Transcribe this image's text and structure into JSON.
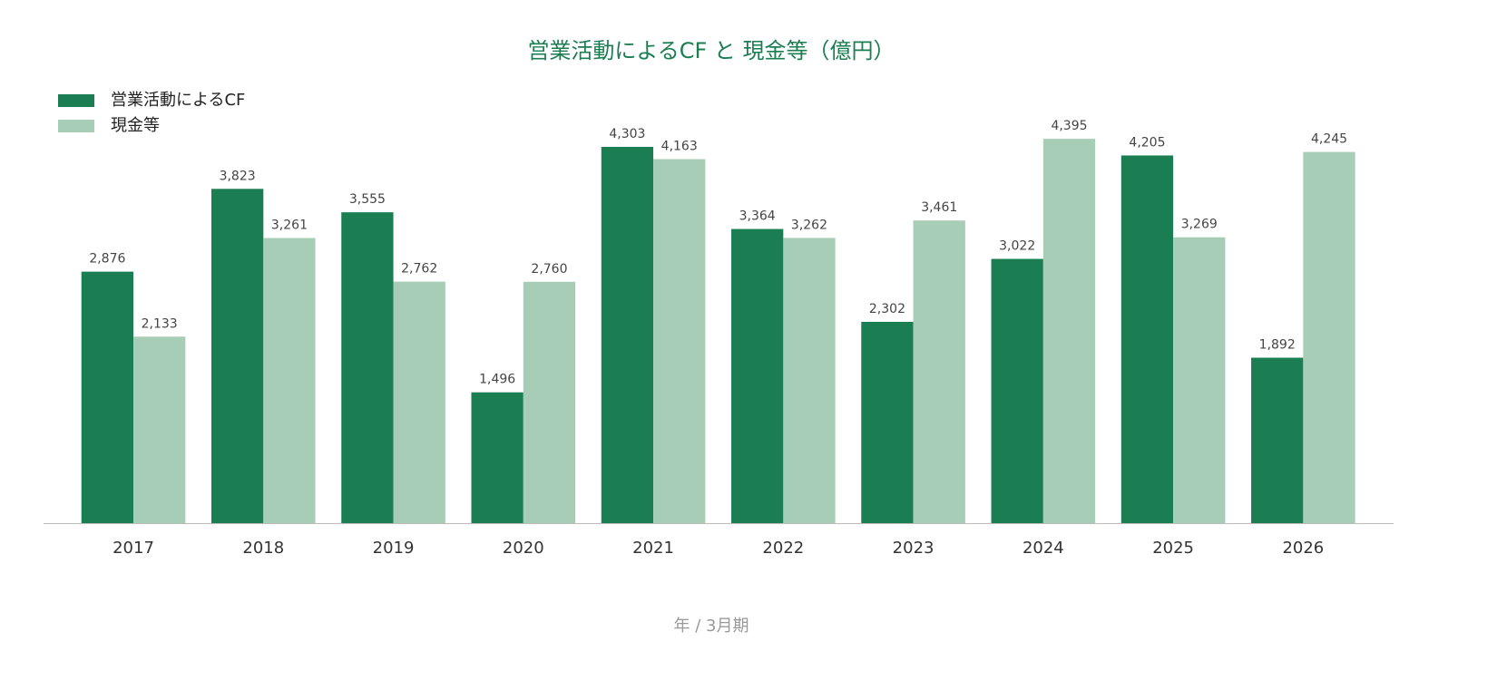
{
  "chart_data": {
    "type": "bar",
    "title": "営業活動によるCF と 現金等（億円）",
    "x_label": "年 / 3月期",
    "categories": [
      "2017",
      "2018",
      "2019",
      "2020",
      "2021",
      "2022",
      "2023",
      "2024",
      "2025",
      "2026"
    ],
    "series": [
      {
        "name": "営業活動によるCF",
        "color": "#1b7d52",
        "values": [
          2876,
          3823,
          3555,
          1496,
          4303,
          3364,
          2302,
          3022,
          4205,
          1892
        ],
        "value_labels": [
          "2,876",
          "3,823",
          "3,555",
          "1,496",
          "4,303",
          "3,364",
          "2,302",
          "3,022",
          "4,205",
          "1,892"
        ]
      },
      {
        "name": "現金等",
        "color": "#a8cdb6",
        "values": [
          2133,
          3261,
          2762,
          2760,
          4163,
          3262,
          3461,
          4395,
          3269,
          4245
        ],
        "value_labels": [
          "2,133",
          "3,261",
          "2,762",
          "2,760",
          "4,163",
          "3,262",
          "3,461",
          "4,395",
          "3,269",
          "4,245"
        ]
      }
    ],
    "ylim": [
      0,
      4500
    ],
    "legend": "top-left"
  }
}
